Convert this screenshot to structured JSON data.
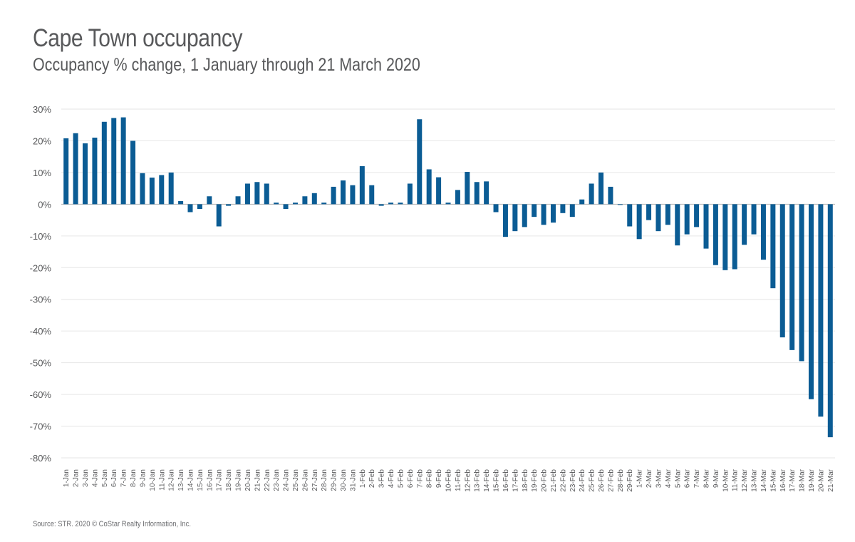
{
  "title": "Cape Town occupancy",
  "subtitle": "Occupancy % change, 1 January through 21 March 2020",
  "source": "Source: STR. 2020 © CoStar Realty Information, Inc.",
  "colors": {
    "bar": "#0b5c94",
    "grid": "#e6e6e6",
    "axis": "#b3b3b3",
    "text": "#58595b"
  },
  "chart_data": {
    "type": "bar",
    "title": "Cape Town occupancy",
    "subtitle": "Occupancy % change, 1 January through 21 March 2020",
    "xlabel": "",
    "ylabel": "",
    "ylim": [
      -80,
      30
    ],
    "yticks": [
      30,
      20,
      10,
      0,
      -10,
      -20,
      -30,
      -40,
      -50,
      -60,
      -70,
      -80
    ],
    "ytick_labels": [
      "30%",
      "20%",
      "10%",
      "0%",
      "-10%",
      "-20%",
      "-30%",
      "-40%",
      "-50%",
      "-60%",
      "-70%",
      "-80%"
    ],
    "grid": true,
    "legend": "none",
    "categories": [
      "1-Jan",
      "2-Jan",
      "3-Jan",
      "4-Jan",
      "5-Jan",
      "6-Jan",
      "7-Jan",
      "8-Jan",
      "9-Jan",
      "10-Jan",
      "11-Jan",
      "12-Jan",
      "13-Jan",
      "14-Jan",
      "15-Jan",
      "16-Jan",
      "17-Jan",
      "18-Jan",
      "19-Jan",
      "20-Jan",
      "21-Jan",
      "22-Jan",
      "23-Jan",
      "24-Jan",
      "25-Jan",
      "26-Jan",
      "27-Jan",
      "28-Jan",
      "29-Jan",
      "30-Jan",
      "31-Jan",
      "1-Feb",
      "2-Feb",
      "3-Feb",
      "4-Feb",
      "5-Feb",
      "6-Feb",
      "7-Feb",
      "8-Feb",
      "9-Feb",
      "10-Feb",
      "11-Feb",
      "12-Feb",
      "13-Feb",
      "14-Feb",
      "15-Feb",
      "16-Feb",
      "17-Feb",
      "18-Feb",
      "19-Feb",
      "20-Feb",
      "21-Feb",
      "22-Feb",
      "23-Feb",
      "24-Feb",
      "25-Feb",
      "26-Feb",
      "27-Feb",
      "28-Feb",
      "29-Feb",
      "1-Mar",
      "2-Mar",
      "3-Mar",
      "4-Mar",
      "5-Mar",
      "6-Mar",
      "7-Mar",
      "8-Mar",
      "9-Mar",
      "10-Mar",
      "11-Mar",
      "12-Mar",
      "13-Mar",
      "14-Mar",
      "15-Mar",
      "16-Mar",
      "17-Mar",
      "18-Mar",
      "19-Mar",
      "20-Mar",
      "21-Mar"
    ],
    "values": [
      20.8,
      22.4,
      19.2,
      21.0,
      26.0,
      27.2,
      27.4,
      20.0,
      9.8,
      8.4,
      9.2,
      10.0,
      1.0,
      -2.5,
      -1.5,
      2.5,
      -7.0,
      -0.5,
      2.5,
      6.5,
      7.0,
      6.5,
      0.5,
      -1.5,
      0.5,
      2.5,
      3.5,
      0.5,
      5.5,
      7.5,
      6.0,
      12.0,
      6.0,
      -0.5,
      0.5,
      0.5,
      6.5,
      26.8,
      11.0,
      8.5,
      0.5,
      4.5,
      10.2,
      7.0,
      7.2,
      -2.5,
      -10.3,
      -8.5,
      -7.2,
      -4.0,
      -6.5,
      -5.8,
      -2.8,
      -4.0,
      1.5,
      6.5,
      10.0,
      5.5,
      0.0,
      -7.0,
      -11.0,
      -5.0,
      -8.5,
      -6.5,
      -13.0,
      -9.5,
      -7.2,
      -14.0,
      -19.2,
      -20.8,
      -20.5,
      -12.8,
      -9.5,
      -17.5,
      -26.5,
      -42.0,
      -46.0,
      -49.5,
      -61.5,
      -67.0,
      -73.5
    ]
  }
}
